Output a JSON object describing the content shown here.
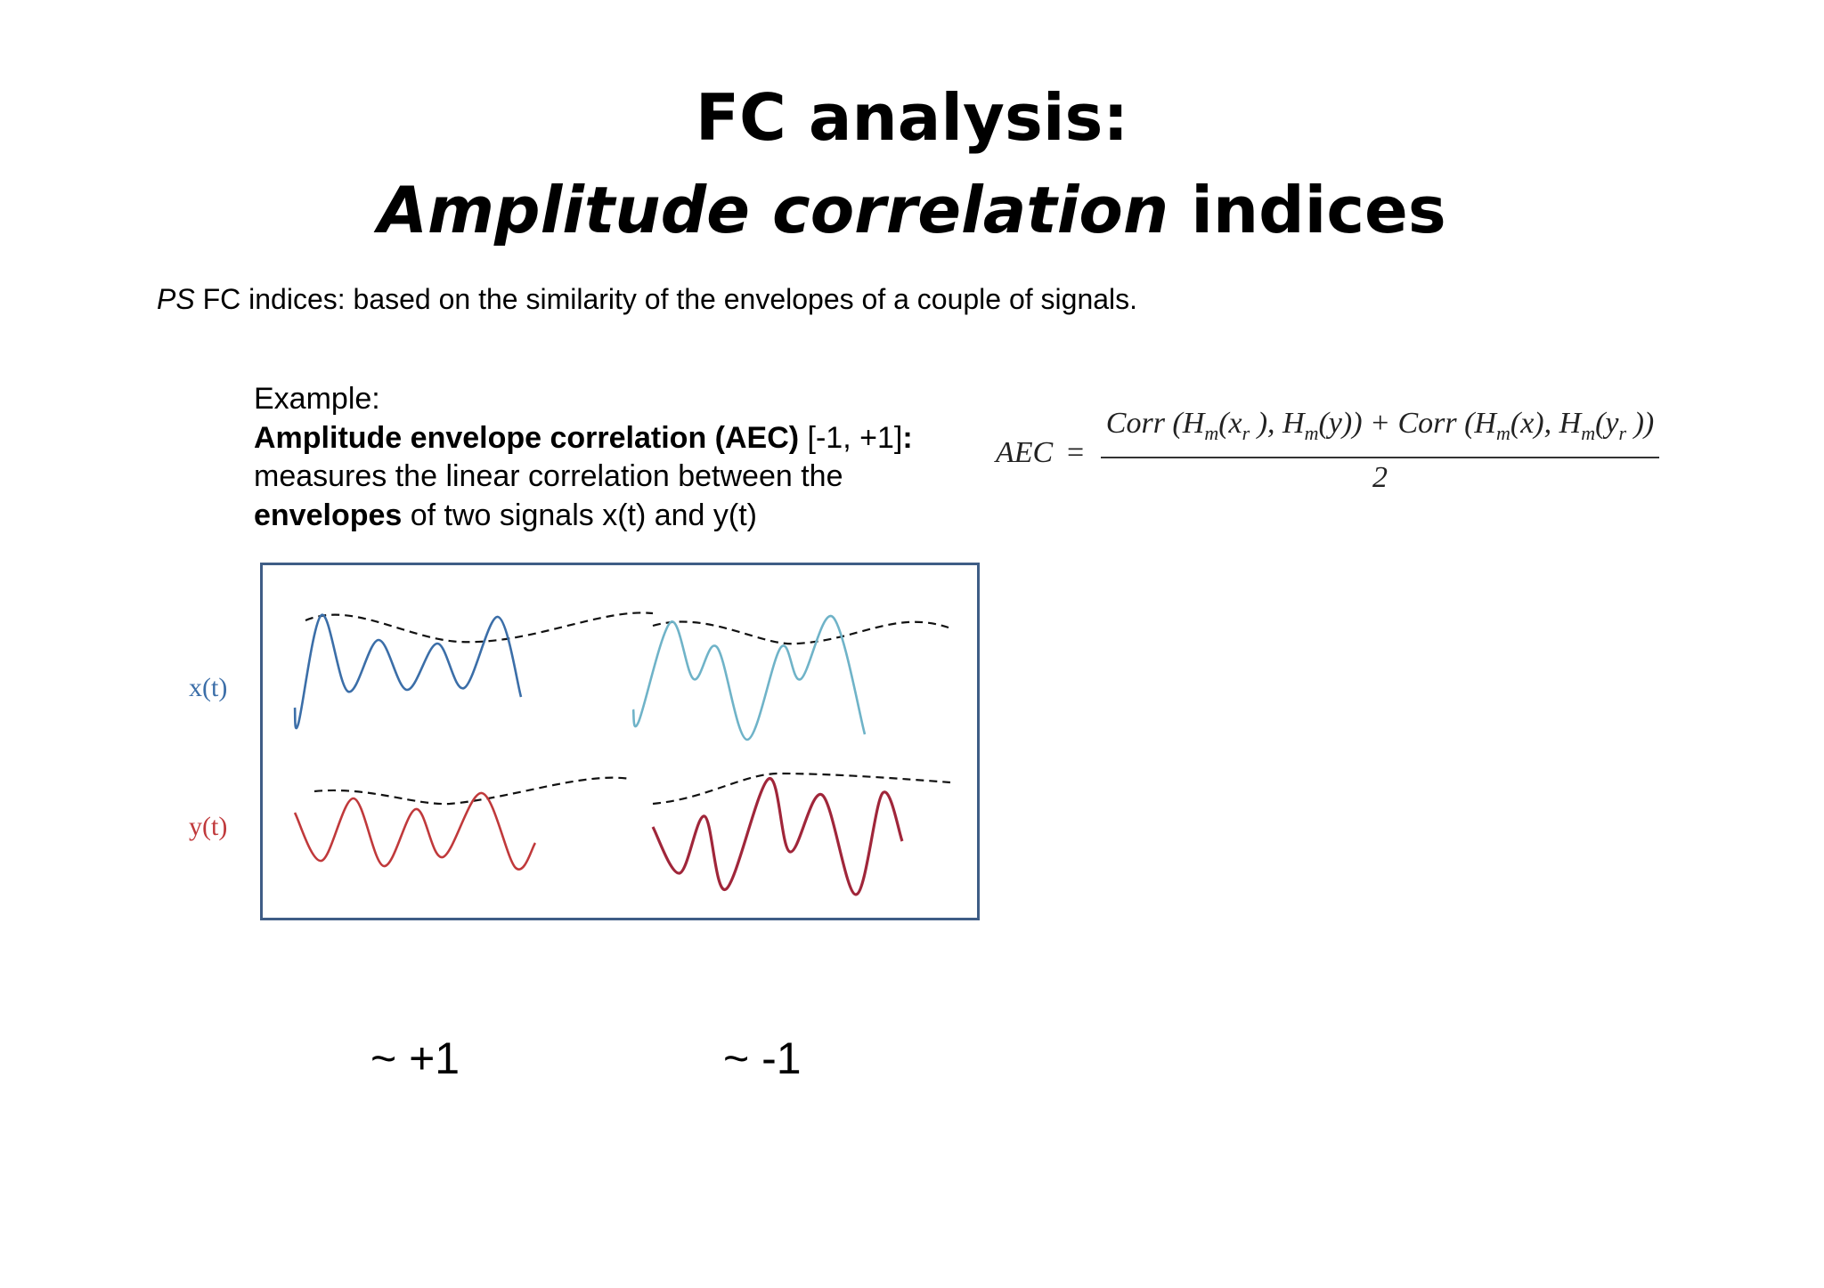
{
  "title": {
    "line1": "FC analysis:",
    "line2_italic": "Amplitude correlation",
    "line2_rest": " indices"
  },
  "intro": {
    "italic": "PS",
    "rest": " FC indices: based on the similarity of the envelopes of a couple of signals."
  },
  "example": {
    "heading": "Example:",
    "bold1": "Amplitude envelope correlation (AEC)",
    "range": " [-1, +1]",
    "colon": ":",
    "line3": "measures the linear correlation between the",
    "bold2": "envelopes",
    "line4_rest": " of two signals x(t) and y(t)"
  },
  "formula": {
    "lhs": "AEC",
    "eq": "=",
    "denominator": "2"
  },
  "figure": {
    "x_label": "x(t)",
    "y_label": "y(t)",
    "colors": {
      "x_signal": "#3b6ea8",
      "x_signal_light": "#6fb3c8",
      "y_signal": "#c0393b",
      "y_signal_dark": "#a0263a",
      "envelope": "#111111",
      "frame": "#3f5d86"
    }
  },
  "results": {
    "left": "~ +1",
    "right": "~ -1"
  }
}
